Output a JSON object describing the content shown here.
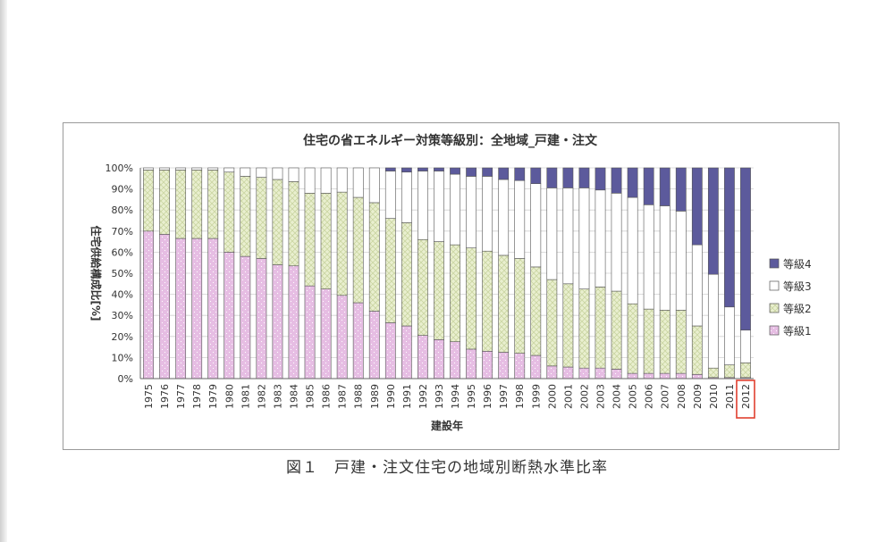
{
  "chart_data": {
    "type": "bar",
    "stacked": true,
    "title": "住宅の省エネルギー対策等級別：全地域_戸建・注文",
    "xlabel": "建設年",
    "ylabel": "住宅供給構成比[%]",
    "ylim": [
      0,
      100
    ],
    "yticks": [
      "0%",
      "10%",
      "20%",
      "30%",
      "40%",
      "50%",
      "60%",
      "70%",
      "80%",
      "90%",
      "100%"
    ],
    "categories": [
      "1975",
      "1976",
      "1977",
      "1978",
      "1979",
      "1980",
      "1981",
      "1982",
      "1983",
      "1984",
      "1985",
      "1986",
      "1987",
      "1988",
      "1989",
      "1990",
      "1991",
      "1992",
      "1993",
      "1994",
      "1995",
      "1996",
      "1997",
      "1998",
      "1999",
      "2000",
      "2001",
      "2002",
      "2003",
      "2004",
      "2005",
      "2006",
      "2007",
      "2008",
      "2009",
      "2010",
      "2011",
      "2012"
    ],
    "highlighted_category": "2012",
    "series": [
      {
        "name": "等級1",
        "color": "#e6bde3",
        "values": [
          70,
          68.5,
          66.5,
          66.5,
          66.5,
          60,
          58,
          57,
          54,
          53.5,
          44,
          42.5,
          39.5,
          36,
          32,
          26.5,
          25,
          20.5,
          18.5,
          17.5,
          14,
          13,
          12.5,
          12,
          11,
          6,
          5.5,
          5,
          5,
          4.5,
          2.5,
          2.5,
          2.5,
          2.5,
          2,
          0.5,
          0.5,
          0.5
        ]
      },
      {
        "name": "等級2",
        "color": "#e4ecc6",
        "values": [
          29,
          30.5,
          32.5,
          32.5,
          32.5,
          38,
          38,
          38.5,
          40.5,
          40,
          44,
          45.5,
          49,
          50,
          51.5,
          49.5,
          49,
          45.5,
          46.5,
          46,
          48,
          47.5,
          46,
          45,
          42,
          41,
          39.5,
          37.5,
          38.5,
          37,
          33,
          30.5,
          30,
          30,
          23,
          4.5,
          6,
          7
        ]
      },
      {
        "name": "等級3",
        "color": "#ffffff",
        "values": [
          1,
          1,
          1,
          1,
          1,
          2,
          4,
          4.5,
          5.5,
          6.5,
          12,
          12,
          11.5,
          14,
          16.5,
          22.5,
          24,
          32.5,
          33.5,
          33.5,
          34,
          35.5,
          36,
          37,
          39.5,
          43.5,
          45.5,
          48,
          46,
          46.5,
          50.5,
          49.5,
          49.5,
          47,
          38.5,
          44.5,
          27.5,
          15.5
        ]
      },
      {
        "name": "等級4",
        "color": "#5c5a9c",
        "values": [
          0,
          0,
          0,
          0,
          0,
          0,
          0,
          0,
          0,
          0,
          0,
          0,
          0,
          0,
          0,
          1.5,
          2,
          1.5,
          1.5,
          3,
          4,
          4,
          5.5,
          6,
          7.5,
          9.5,
          9.5,
          9.5,
          10.5,
          12,
          14,
          17.5,
          18,
          20.5,
          36.5,
          50.5,
          66,
          77
        ]
      }
    ],
    "legend": [
      "等級4",
      "等級3",
      "等級2",
      "等級1"
    ],
    "legend_position": "right"
  },
  "caption": "図１　戸建・注文住宅の地域別断熱水準比率"
}
